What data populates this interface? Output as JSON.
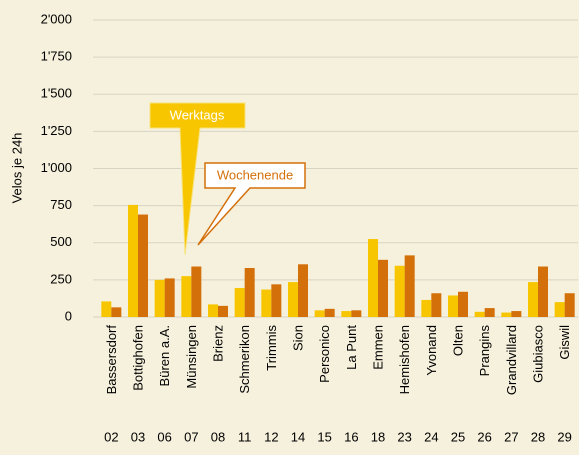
{
  "chart_data": {
    "type": "bar",
    "y_label": "Velos je 24h",
    "categories": [
      "Bassersdorf",
      "Bottighofen",
      "Büren a.A.",
      "Münsingen",
      "Brienz",
      "Schmerikon",
      "Trimmis",
      "Sion",
      "Personico",
      "La Punt",
      "Emmen",
      "Hemishofen",
      "Yvonand",
      "Olten",
      "Prangins",
      "Grandvillard",
      "Giubiasco",
      "Giswil"
    ],
    "category_codes": [
      "02",
      "03",
      "06",
      "07",
      "08",
      "11",
      "12",
      "14",
      "15",
      "16",
      "18",
      "23",
      "24",
      "25",
      "26",
      "27",
      "28",
      "29"
    ],
    "series": [
      {
        "name": "Werktags",
        "color": "#f7c600",
        "values": [
          105,
          755,
          250,
          275,
          85,
          195,
          185,
          235,
          45,
          40,
          525,
          345,
          115,
          145,
          35,
          30,
          235,
          100
        ]
      },
      {
        "name": "Wochenende",
        "color": "#d4700a",
        "values": [
          65,
          690,
          260,
          340,
          75,
          330,
          220,
          355,
          55,
          45,
          385,
          415,
          160,
          170,
          60,
          40,
          340,
          160
        ]
      }
    ],
    "ylim": [
      0,
      2000
    ],
    "yticks": [
      0,
      250,
      500,
      750,
      {
        "value": 1000,
        "label": "1'000"
      },
      {
        "value": 1250,
        "label": "1'250"
      },
      {
        "value": 1500,
        "label": "1'500"
      },
      {
        "value": 1750,
        "label": "1'750"
      },
      {
        "value": 2000,
        "label": "2'000"
      }
    ],
    "grid": true
  }
}
